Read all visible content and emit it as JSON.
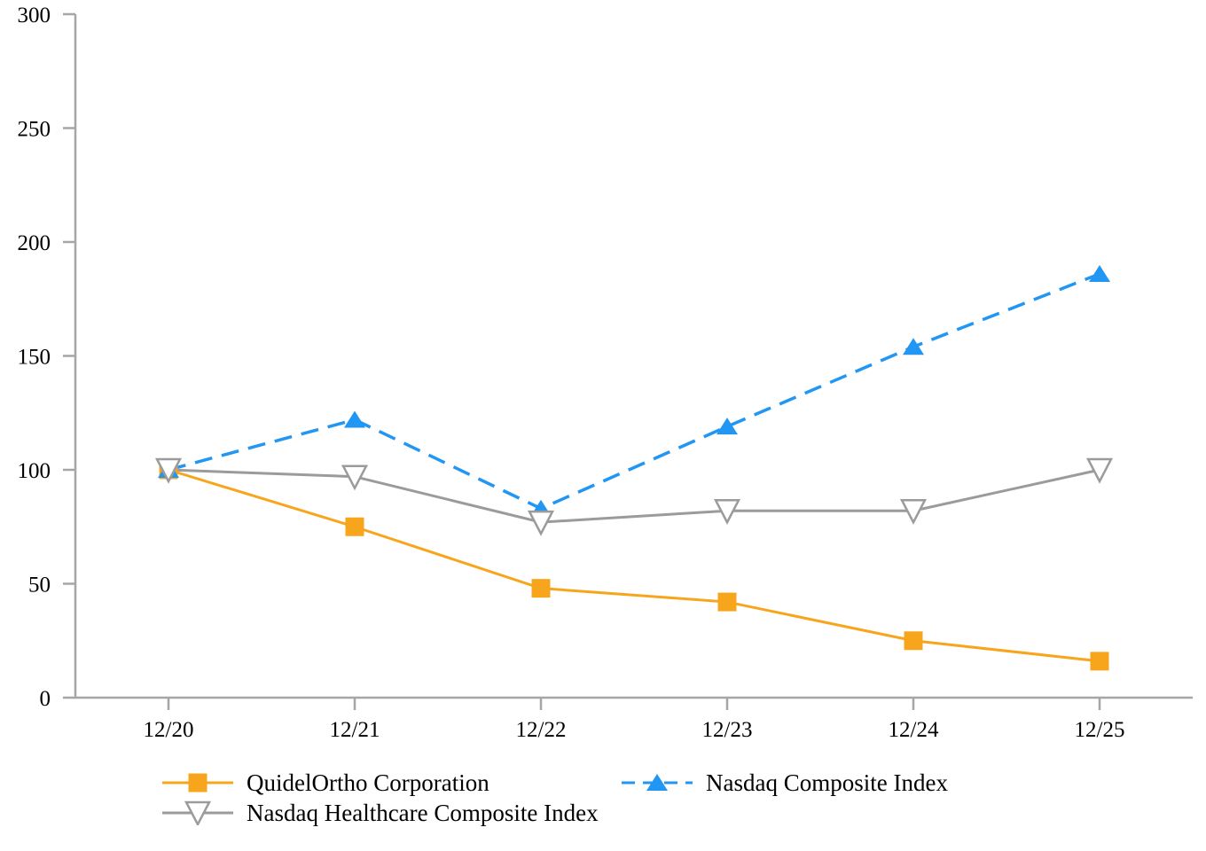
{
  "chart_data": {
    "type": "line",
    "title": "",
    "x_categories": [
      "12/20",
      "12/21",
      "12/22",
      "12/23",
      "12/24",
      "12/25"
    ],
    "ylim": [
      0,
      300
    ],
    "yticks": [
      0,
      50,
      100,
      150,
      200,
      250,
      300
    ],
    "grid": false,
    "legend_position": "bottom-left",
    "axis_color": "#A6A6A6",
    "text_color": "#000000",
    "background_color": "#FFFFFF",
    "series": [
      {
        "name": "QuidelOrtho Corporation",
        "values": [
          100,
          75,
          48,
          42,
          25,
          16
        ],
        "color": "#F8A51E",
        "line_style": "solid",
        "marker": "square-filled"
      },
      {
        "name": "Nasdaq Composite Index",
        "values": [
          100,
          122,
          83,
          119,
          154,
          186
        ],
        "color": "#2196F3",
        "line_style": "dashed",
        "marker": "triangle-up-filled"
      },
      {
        "name": "Nasdaq Healthcare Composite Index",
        "values": [
          100,
          97,
          77,
          82,
          82,
          100
        ],
        "color": "#9B9B9B",
        "line_style": "solid",
        "marker": "triangle-down-open"
      }
    ]
  }
}
